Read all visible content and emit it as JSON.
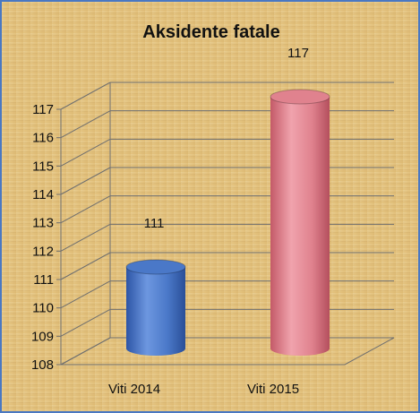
{
  "chart_data": {
    "type": "bar",
    "style": "3d-cylinder",
    "title": "Aksidente fatale",
    "categories": [
      "Viti 2014",
      "Viti 2015"
    ],
    "values": [
      111,
      117
    ],
    "data_labels": [
      "111",
      "117"
    ],
    "ylim": [
      108,
      117
    ],
    "yticks": [
      "108",
      "109",
      "110",
      "111",
      "112",
      "113",
      "114",
      "115",
      "116",
      "117"
    ],
    "grid": true,
    "legend": "none",
    "colors": {
      "series": [
        "#4a78c8",
        "#e0828e"
      ],
      "frame_border": "#4a78c2",
      "background": "#e6c98a"
    }
  }
}
